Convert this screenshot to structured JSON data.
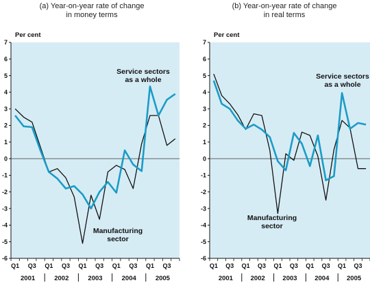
{
  "chart_data": [
    {
      "type": "line",
      "title_lines": [
        "(a) Year-on-year rate of change",
        "in money terms"
      ],
      "ylabel": "Per cent",
      "ylim": [
        -6,
        7
      ],
      "yticks": [
        "-6",
        "-5",
        "-4",
        "-3",
        "-2",
        "-1",
        "0",
        "1",
        "2",
        "3",
        "4",
        "5",
        "6",
        "7"
      ],
      "quarter_labels": [
        "Q1",
        "Q3",
        "Q1",
        "Q3",
        "Q1",
        "Q3",
        "Q1",
        "Q3",
        "Q1",
        "Q3"
      ],
      "years": [
        "2001",
        "2002",
        "2003",
        "2004",
        "2005"
      ],
      "grid": false,
      "x": [
        "2001 Q1",
        "2001 Q2",
        "2001 Q3",
        "2001 Q4",
        "2002 Q1",
        "2002 Q2",
        "2002 Q3",
        "2002 Q4",
        "2003 Q1",
        "2003 Q2",
        "2003 Q3",
        "2003 Q4",
        "2004 Q1",
        "2004 Q2",
        "2004 Q3",
        "2004 Q4",
        "2005 Q1",
        "2005 Q2",
        "2005 Q3",
        "2005 Q4"
      ],
      "series": [
        {
          "name": "Service sectors as a whole",
          "color": "#1a9cc7",
          "values": [
            2.6,
            1.95,
            1.9,
            0.5,
            -0.8,
            -1.2,
            -1.8,
            -1.65,
            -2.15,
            -3.0,
            -2.0,
            -1.4,
            -2.05,
            0.5,
            -0.35,
            -0.75,
            4.35,
            2.6,
            3.55,
            3.9
          ]
        },
        {
          "name": "Manufacturing sector",
          "color": "#111111",
          "values": [
            3.0,
            2.5,
            2.2,
            0.7,
            -0.8,
            -0.6,
            -1.15,
            -2.3,
            -5.1,
            -2.2,
            -3.65,
            -0.8,
            -0.4,
            -0.65,
            -1.8,
            0.9,
            2.6,
            2.6,
            0.8,
            1.2
          ]
        }
      ],
      "annotations": [
        {
          "lines": [
            "Service sectors",
            "as a whole"
          ]
        },
        {
          "lines": [
            "Manufacturing",
            "sector"
          ]
        }
      ]
    },
    {
      "type": "line",
      "title_lines": [
        "(b) Year-on-year rate of change",
        "in real terms"
      ],
      "ylabel": "Per cent",
      "ylim": [
        -6,
        7
      ],
      "yticks": [
        "-6",
        "-5",
        "-4",
        "-3",
        "-2",
        "-1",
        "0",
        "1",
        "2",
        "3",
        "4",
        "5",
        "6",
        "7"
      ],
      "quarter_labels": [
        "Q1",
        "Q3",
        "Q1",
        "Q3",
        "Q1",
        "Q3",
        "Q1",
        "Q3",
        "Q1",
        "Q3"
      ],
      "years": [
        "2001",
        "2002",
        "2003",
        "2004",
        "2005"
      ],
      "grid": false,
      "x": [
        "2001 Q1",
        "2001 Q2",
        "2001 Q3",
        "2001 Q4",
        "2002 Q1",
        "2002 Q2",
        "2002 Q3",
        "2002 Q4",
        "2003 Q1",
        "2003 Q2",
        "2003 Q3",
        "2003 Q4",
        "2004 Q1",
        "2004 Q2",
        "2004 Q3",
        "2004 Q4",
        "2005 Q1",
        "2005 Q2",
        "2005 Q3",
        "2005 Q4"
      ],
      "series": [
        {
          "name": "Service sectors as a whole",
          "color": "#1a9cc7",
          "values": [
            4.7,
            3.3,
            3.0,
            2.3,
            1.8,
            2.05,
            1.75,
            1.3,
            -0.15,
            -0.7,
            1.55,
            0.9,
            -0.45,
            1.4,
            -1.3,
            -1.05,
            3.95,
            1.8,
            2.15,
            2.05
          ]
        },
        {
          "name": "Manufacturing sector",
          "color": "#111111",
          "values": [
            5.1,
            3.8,
            3.3,
            2.65,
            1.75,
            2.7,
            2.6,
            0.5,
            -3.3,
            0.3,
            -0.1,
            1.6,
            1.4,
            0.15,
            -2.5,
            0.55,
            2.3,
            1.85,
            -0.6,
            -0.6
          ]
        }
      ],
      "annotations": [
        {
          "lines": [
            "Service sectors",
            "as a whole"
          ]
        },
        {
          "lines": [
            "Manufacturing",
            "sector"
          ]
        }
      ]
    }
  ]
}
